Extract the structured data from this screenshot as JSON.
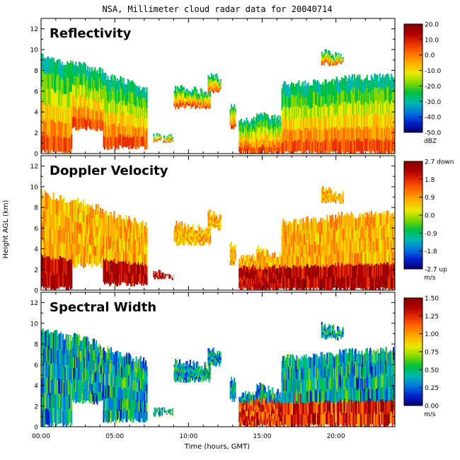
{
  "title": "NSA, Millimeter cloud radar data for 20040714",
  "xlabel": "Time (hours, GMT)",
  "ylabel": "Height AGL (km)",
  "x_ticks": [
    "00:00",
    "05:00",
    "10:00",
    "15:00",
    "20:00"
  ],
  "y_ticks": [
    "0",
    "2",
    "4",
    "6",
    "8",
    "10",
    "12"
  ],
  "colors": {
    "scale": [
      "#08006e",
      "#0022cc",
      "#0077dd",
      "#00b8b0",
      "#00c040",
      "#80d800",
      "#e8e800",
      "#ffb000",
      "#ff7000",
      "#e83000",
      "#b00000",
      "#880000"
    ]
  },
  "chart_data": [
    {
      "type": "heatmap",
      "title": "Reflectivity",
      "unit": "dBZ",
      "xlim": [
        0,
        24
      ],
      "ylim": [
        0,
        13
      ],
      "colorbar_ticks": [
        "20.0",
        "10.0",
        "0.0",
        "-10.0",
        "-20.0",
        "-30.0",
        "-40.0",
        "-50.0"
      ],
      "colorbar_range": [
        -50,
        20
      ],
      "grid": false
    },
    {
      "type": "heatmap",
      "title": "Doppler Velocity",
      "unit": "m/s",
      "xlim": [
        0,
        24
      ],
      "ylim": [
        0,
        13
      ],
      "colorbar_ticks": [
        "2.7 down",
        "1.8",
        "0.9",
        "0.0",
        "-0.9",
        "-1.8",
        "-2.7 up"
      ],
      "colorbar_range": [
        -2.7,
        2.7
      ],
      "grid": false
    },
    {
      "type": "heatmap",
      "title": "Spectral Width",
      "unit": "m/s",
      "xlim": [
        0,
        24
      ],
      "ylim": [
        0,
        13
      ],
      "colorbar_ticks": [
        "1.50",
        "1.25",
        "1.00",
        "0.75",
        "0.50",
        "0.25",
        "0.00"
      ],
      "colorbar_range": [
        0,
        1.5
      ],
      "grid": false
    }
  ]
}
